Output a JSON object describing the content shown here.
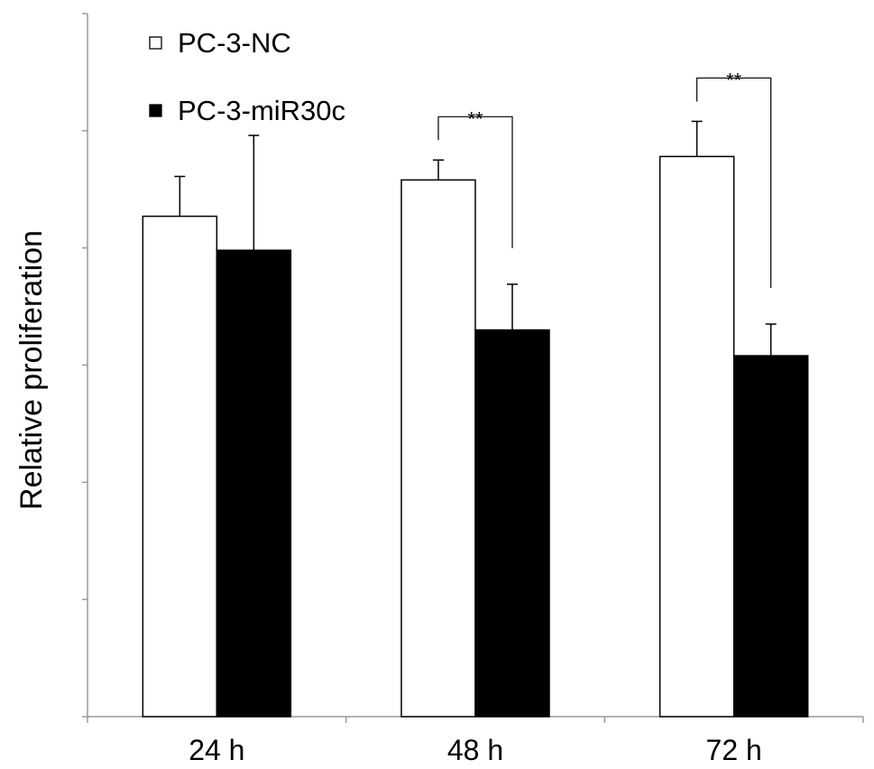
{
  "chart_data": {
    "type": "bar",
    "title": "",
    "xlabel": "",
    "ylabel": "Relative proliferation",
    "categories": [
      "24 h",
      "48 h",
      "72 h"
    ],
    "ylim": [
      0,
      6
    ],
    "series": [
      {
        "name": "PC-3-NC",
        "fill": "#ffffff",
        "values": [
          4.27,
          4.58,
          4.78
        ],
        "errors": [
          0.34,
          0.17,
          0.3
        ]
      },
      {
        "name": "PC-3-miR30c",
        "fill": "#000000",
        "values": [
          3.98,
          3.3,
          3.08
        ],
        "errors": [
          0.98,
          0.39,
          0.27
        ]
      }
    ],
    "significance": [
      {
        "category": "48 h",
        "label": "**"
      },
      {
        "category": "72 h",
        "label": "**"
      }
    ],
    "legend": {
      "position": "top-left"
    },
    "grid": false
  }
}
